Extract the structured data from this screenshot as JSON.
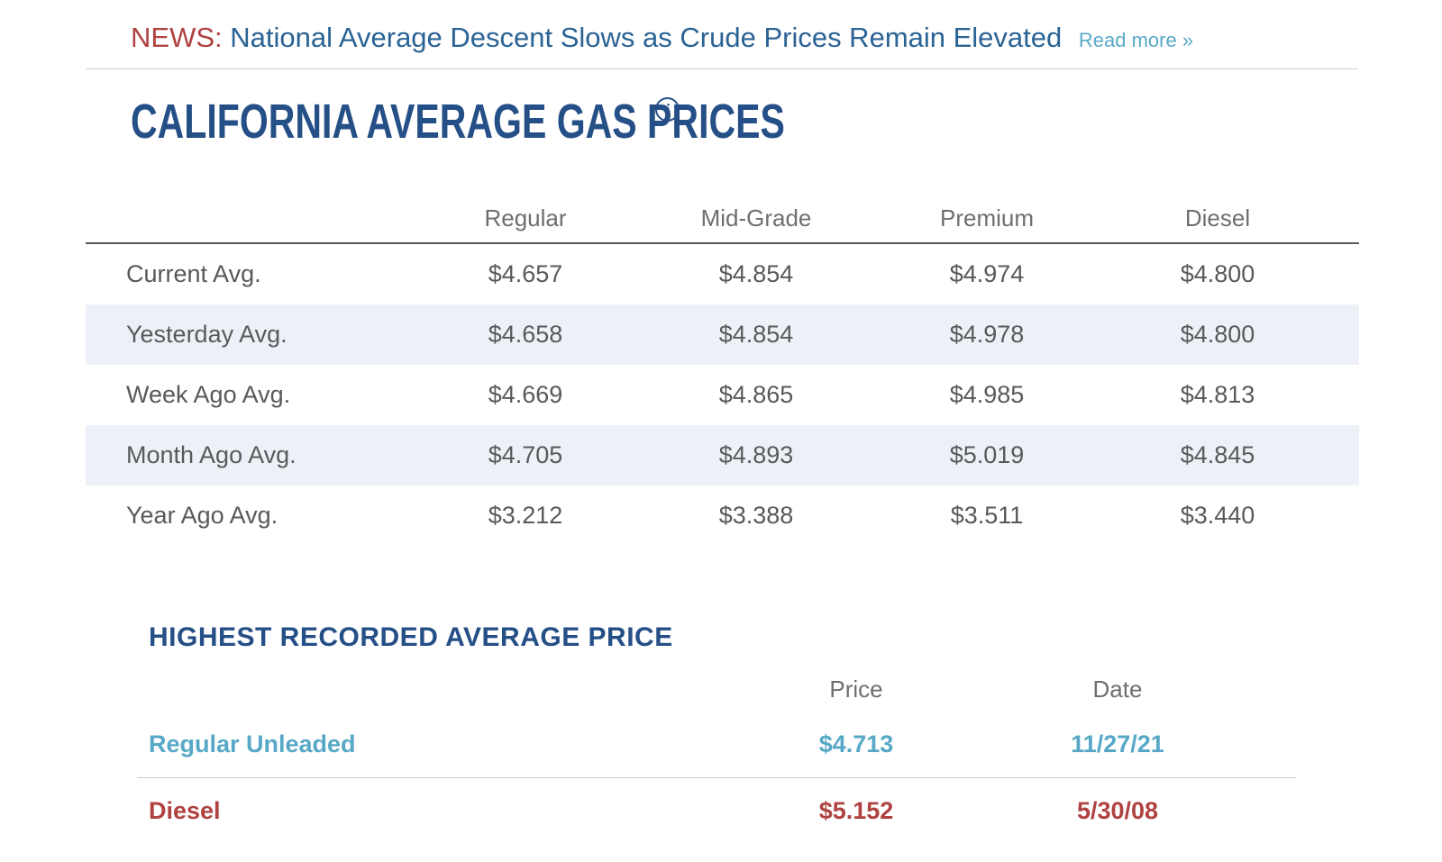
{
  "news": {
    "prefix": "NEWS:",
    "headline": "National Average Descent Slows as Crude Prices Remain Elevated",
    "read_more": "Read more »"
  },
  "page": {
    "title": "CALIFORNIA AVERAGE GAS PRICES",
    "info_icon_glyph": "i"
  },
  "gas_table": {
    "columns": [
      "Regular",
      "Mid-Grade",
      "Premium",
      "Diesel"
    ],
    "rows": [
      {
        "label": "Current Avg.",
        "values": [
          "$4.657",
          "$4.854",
          "$4.974",
          "$4.800"
        ]
      },
      {
        "label": "Yesterday Avg.",
        "values": [
          "$4.658",
          "$4.854",
          "$4.978",
          "$4.800"
        ]
      },
      {
        "label": "Week Ago Avg.",
        "values": [
          "$4.669",
          "$4.865",
          "$4.985",
          "$4.813"
        ]
      },
      {
        "label": "Month Ago Avg.",
        "values": [
          "$4.705",
          "$4.893",
          "$5.019",
          "$4.845"
        ]
      },
      {
        "label": "Year Ago Avg.",
        "values": [
          "$3.212",
          "$3.388",
          "$3.511",
          "$3.440"
        ]
      }
    ]
  },
  "highest_recorded": {
    "title": "HIGHEST RECORDED AVERAGE PRICE",
    "columns": [
      "Price",
      "Date"
    ],
    "rows": [
      {
        "label": "Regular Unleaded",
        "price": "$4.713",
        "date": "11/27/21",
        "color": "#57a8c6"
      },
      {
        "label": "Diesel",
        "price": "$5.152",
        "date": "5/30/08",
        "color": "#b04242"
      }
    ]
  },
  "colors": {
    "news_label_red": "#b04141",
    "headline_blue": "#2b6394",
    "read_more_blue": "#58a9c8",
    "title_navy": "#254f87",
    "table_text_gray": "#58595b",
    "header_text_gray": "#6d6e71",
    "row_stripe": "#edf1f7",
    "divider_light": "#cccccc",
    "divider_dark": "#58595b",
    "accent_teal": "#57a8c6",
    "accent_red": "#b04242"
  }
}
